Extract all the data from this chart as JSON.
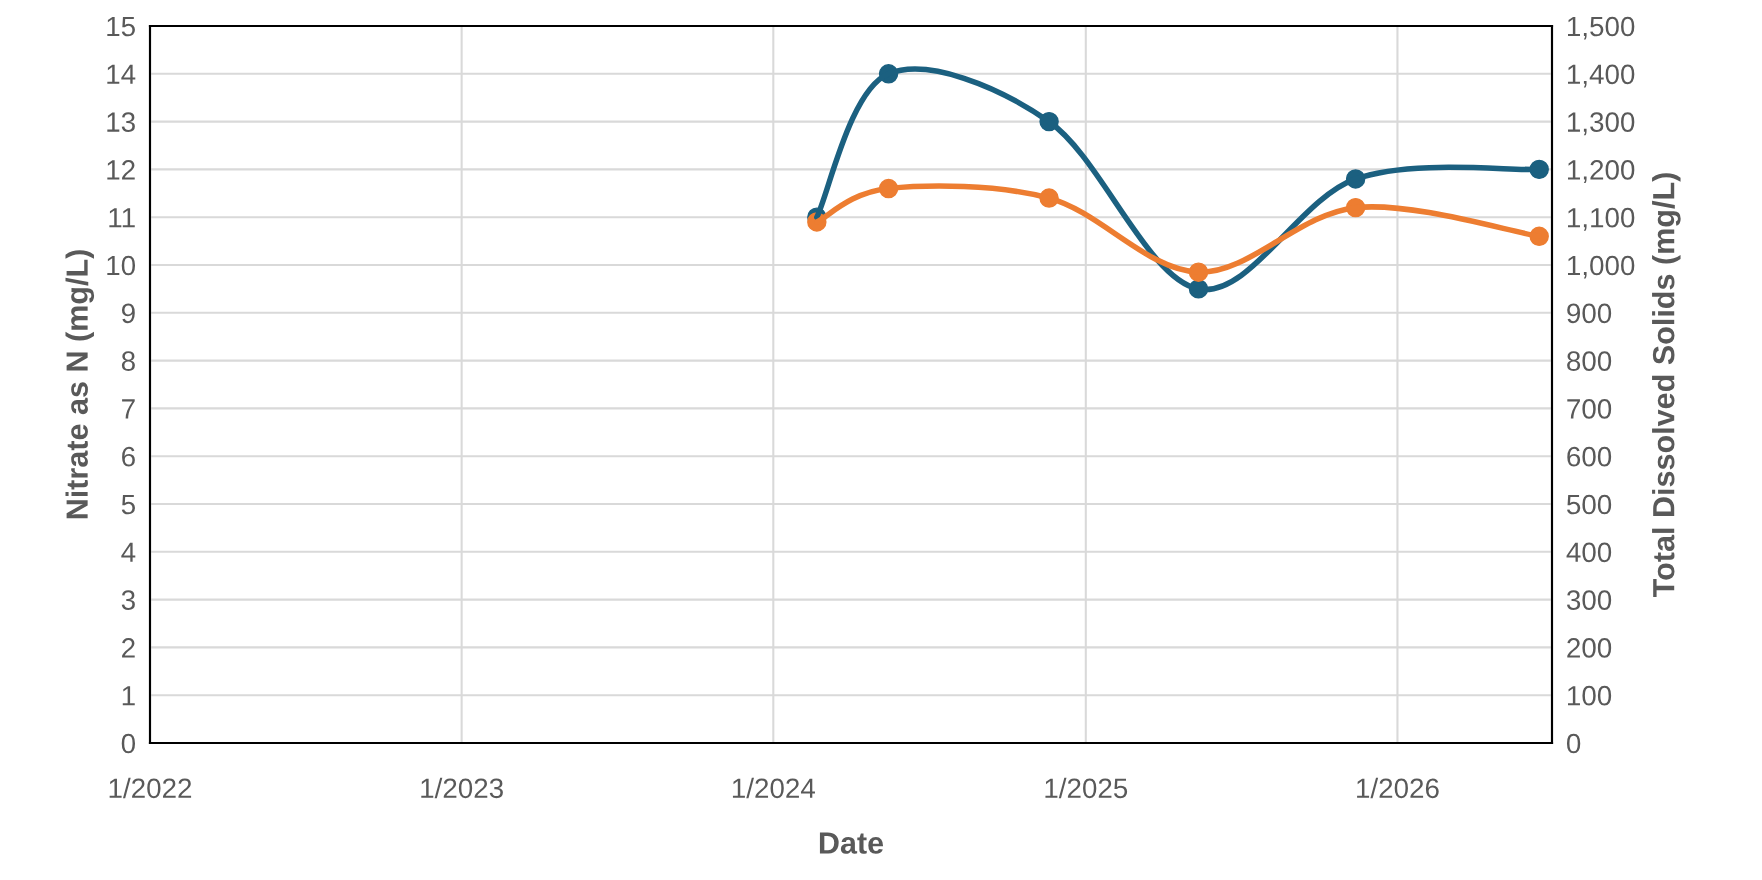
{
  "chart_data": {
    "type": "line",
    "xlabel": "Date",
    "ylabel": "Nitrate as N (mg/L)",
    "y2label": "Total Dissolved Solids (mg/L)",
    "x": [
      "2024-02-21",
      "2024-05-15",
      "2024-11-19",
      "2025-05-13",
      "2025-11-13",
      "2026-06-16"
    ],
    "series": [
      {
        "color": "#1b6080",
        "values": [
          11,
          14,
          13,
          9.5,
          11.8,
          12
        ]
      },
      {
        "color": "#ed7d31",
        "values": [
          1090,
          1160,
          1140,
          985,
          1120,
          1060
        ],
        "axis": "y2"
      }
    ],
    "xlim": [
      "2022-01-01",
      "2026-07-01"
    ],
    "xticks": [
      {
        "value": "2022-01-01",
        "label": "1/2022"
      },
      {
        "value": "2023-01-01",
        "label": "1/2023"
      },
      {
        "value": "2024-01-01",
        "label": "1/2024"
      },
      {
        "value": "2025-01-01",
        "label": "1/2025"
      },
      {
        "value": "2026-01-01",
        "label": "1/2026"
      }
    ],
    "ylim": [
      0,
      15
    ],
    "yticks": [
      0,
      1,
      2,
      3,
      4,
      5,
      6,
      7,
      8,
      9,
      10,
      11,
      12,
      13,
      14,
      15
    ],
    "y2lim": [
      0,
      1500
    ],
    "y2ticks": [
      0,
      100,
      200,
      300,
      400,
      500,
      600,
      700,
      800,
      900,
      {
        "value": 1000,
        "label": "1,000"
      },
      {
        "value": 1100,
        "label": "1,100"
      },
      {
        "value": 1200,
        "label": "1,200"
      },
      {
        "value": 1300,
        "label": "1,300"
      },
      {
        "value": 1400,
        "label": "1,400"
      },
      {
        "value": 1500,
        "label": "1,500"
      }
    ],
    "grid": true,
    "marker": "circle",
    "line_style": "solid",
    "legend": false
  }
}
